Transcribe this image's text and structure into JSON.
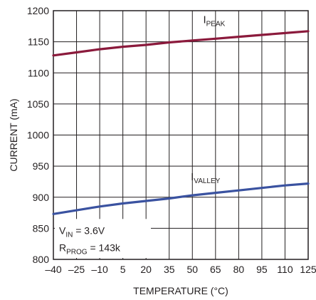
{
  "chart_data": {
    "type": "line",
    "xlabel": "TEMPERATURE (°C)",
    "ylabel": "CURRENT (mA)",
    "xlim": [
      -40,
      125
    ],
    "ylim": [
      800,
      1200
    ],
    "x_ticks": [
      -40,
      -25,
      -10,
      5,
      20,
      35,
      50,
      65,
      80,
      95,
      110,
      125
    ],
    "x_tick_labels": [
      "–40",
      "–25",
      "–10",
      "5",
      "20",
      "35",
      "50",
      "65",
      "80",
      "95",
      "110",
      "125"
    ],
    "y_ticks": [
      800,
      850,
      900,
      950,
      1000,
      1050,
      1100,
      1150,
      1200
    ],
    "y_tick_labels": [
      "800",
      "850",
      "900",
      "950",
      "1000",
      "1050",
      "1100",
      "1150",
      "1200"
    ],
    "grid": true,
    "series": [
      {
        "label_main": "I",
        "label_sub": "PEAK",
        "color": "#8b1a3c",
        "x": [
          -40,
          -25,
          -10,
          5,
          20,
          35,
          50,
          65,
          80,
          95,
          110,
          125
        ],
        "y": [
          1128,
          1133,
          1138,
          1142,
          1145,
          1149,
          1152,
          1155,
          1158,
          1161,
          1164,
          1167
        ]
      },
      {
        "label_main": "I",
        "label_sub": "VALLEY",
        "color": "#3a52a0",
        "x": [
          -40,
          -25,
          -10,
          5,
          20,
          35,
          50,
          65,
          80,
          95,
          110,
          125
        ],
        "y": [
          873,
          879,
          885,
          890,
          894,
          898,
          903,
          907,
          911,
          915,
          919,
          922
        ]
      }
    ],
    "conditions": [
      {
        "main": "V",
        "sub": "IN",
        "rest": " = 3.6V"
      },
      {
        "main": "R",
        "sub": "PROG",
        "rest": " = 143k"
      }
    ]
  }
}
